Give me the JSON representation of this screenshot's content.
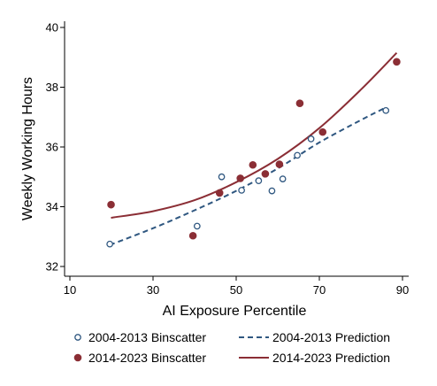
{
  "chart_data": {
    "type": "scatter",
    "xlabel": "AI Exposure Percentile",
    "ylabel": "Weekly Working Hours",
    "xlim": [
      10,
      90
    ],
    "ylim": [
      32,
      40
    ],
    "xticks": [
      10,
      30,
      50,
      70,
      90
    ],
    "yticks": [
      32,
      34,
      36,
      38,
      40
    ],
    "grid": false,
    "legend_position": "bottom",
    "series": [
      {
        "name": "2004-2013 Binscatter",
        "kind": "scatter",
        "marker": "hollow-circle",
        "color": "#2f5780",
        "points": [
          [
            19.6,
            32.75
          ],
          [
            40.6,
            33.35
          ],
          [
            46.5,
            35.0
          ],
          [
            51.3,
            34.55
          ],
          [
            55.4,
            34.87
          ],
          [
            58.6,
            34.53
          ],
          [
            61.2,
            34.93
          ],
          [
            64.7,
            35.72
          ],
          [
            68.0,
            36.27
          ],
          [
            86.0,
            37.22
          ]
        ]
      },
      {
        "name": "2014-2023 Binscatter",
        "kind": "scatter",
        "marker": "filled-circle",
        "color": "#8b2e35",
        "points": [
          [
            19.9,
            34.07
          ],
          [
            39.6,
            33.03
          ],
          [
            46.0,
            34.46
          ],
          [
            51.0,
            34.95
          ],
          [
            54.0,
            35.4
          ],
          [
            57.0,
            35.1
          ],
          [
            60.4,
            35.42
          ],
          [
            65.3,
            37.46
          ],
          [
            70.8,
            36.5
          ],
          [
            88.6,
            38.85
          ]
        ]
      },
      {
        "name": "2004-2013 Prediction",
        "kind": "line",
        "style": "dashed",
        "color": "#2f5780",
        "points": [
          [
            19.6,
            32.72
          ],
          [
            30,
            33.28
          ],
          [
            40,
            33.88
          ],
          [
            50,
            34.53
          ],
          [
            60,
            35.28
          ],
          [
            70,
            36.15
          ],
          [
            80,
            36.9
          ],
          [
            86,
            37.32
          ]
        ]
      },
      {
        "name": "2014-2023 Prediction",
        "kind": "line",
        "style": "solid",
        "color": "#8b2e35",
        "points": [
          [
            19.9,
            33.63
          ],
          [
            30,
            33.85
          ],
          [
            40,
            34.22
          ],
          [
            50,
            34.82
          ],
          [
            60,
            35.6
          ],
          [
            70,
            36.63
          ],
          [
            80,
            37.92
          ],
          [
            88.6,
            39.15
          ]
        ]
      }
    ]
  },
  "legend": [
    {
      "label": "2004-2013 Binscatter",
      "symbol": "hollow-circle",
      "color": "#2f5780"
    },
    {
      "label": "2004-2013 Prediction",
      "symbol": "dashed-line",
      "color": "#2f5780"
    },
    {
      "label": "2014-2023 Binscatter",
      "symbol": "filled-circle",
      "color": "#8b2e35"
    },
    {
      "label": "2014-2023 Prediction",
      "symbol": "solid-line",
      "color": "#8b2e35"
    }
  ]
}
